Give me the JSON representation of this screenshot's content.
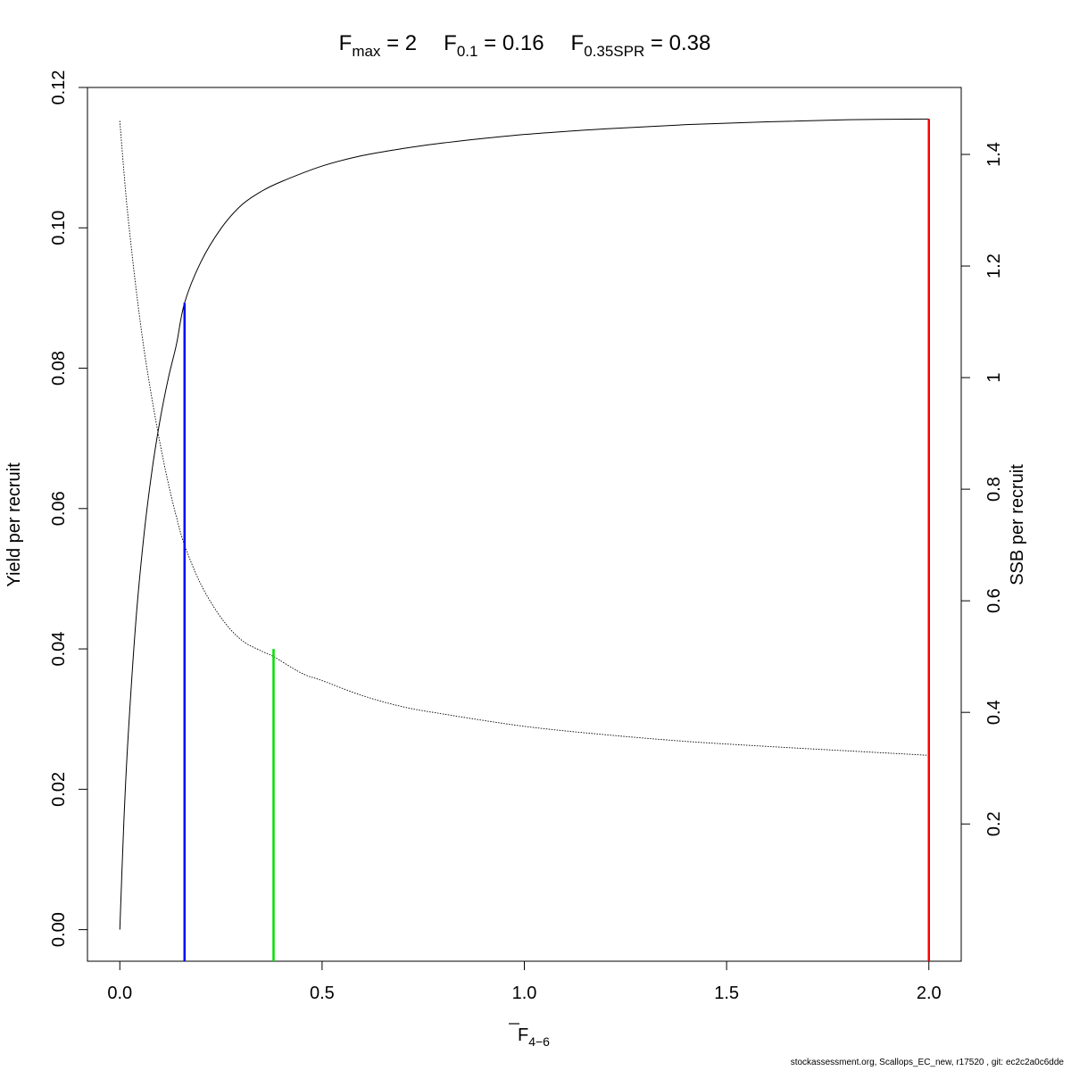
{
  "title": {
    "fmax": {
      "sym": "F",
      "sub": "max",
      "eq": " = ",
      "val": "2"
    },
    "f01": {
      "sym": "F",
      "sub": "0.1",
      "eq": " = ",
      "val": "0.16"
    },
    "fspr": {
      "sym": "F",
      "sub": "0.35SPR",
      "eq": " = ",
      "val": "0.38"
    }
  },
  "footer": "stockassessment.org, Scallops_EC_new, r17520 , git: ec2c2a0c6dde",
  "chart_data": {
    "type": "line",
    "xlabel": {
      "sym": "F",
      "sub": "4−6"
    },
    "ylabel_left": "Yield per recruit",
    "ylabel_right": "SSB per recruit",
    "xlim": [
      -0.08,
      2.08
    ],
    "ylim_left": [
      -0.0045,
      0.12
    ],
    "ylim_right": [
      -0.046,
      1.52
    ],
    "x_ticks": [
      0.0,
      0.5,
      1.0,
      1.5,
      2.0
    ],
    "x_tick_labels": [
      "0.0",
      "0.5",
      "1.0",
      "1.5",
      "2.0"
    ],
    "y_ticks_left": [
      0.0,
      0.02,
      0.04,
      0.06,
      0.08,
      0.1,
      0.12
    ],
    "y_tick_labels_left": [
      "0.00",
      "0.02",
      "0.04",
      "0.06",
      "0.08",
      "0.10",
      "0.12"
    ],
    "y_ticks_right": [
      0.2,
      0.4,
      0.6,
      0.8,
      1.0,
      1.2,
      1.4
    ],
    "y_tick_labels_right": [
      "0.2",
      "0.4",
      "0.6",
      "0.8",
      "1",
      "1.2",
      "1.4"
    ],
    "series": [
      {
        "axis": "left",
        "style": "solid",
        "color": "#000000",
        "x": [
          0,
          0.01,
          0.02,
          0.04,
          0.06,
          0.08,
          0.1,
          0.12,
          0.14,
          0.16,
          0.2,
          0.25,
          0.3,
          0.35,
          0.4,
          0.5,
          0.6,
          0.7,
          0.8,
          1.0,
          1.2,
          1.4,
          1.6,
          1.8,
          2.0
        ],
        "values": [
          0,
          0.0154,
          0.027,
          0.0442,
          0.0564,
          0.0656,
          0.0728,
          0.0786,
          0.0834,
          0.0893,
          0.0951,
          0.0999,
          0.1032,
          0.1052,
          0.1066,
          0.1088,
          0.1103,
          0.1113,
          0.1121,
          0.1133,
          0.1141,
          0.1147,
          0.1151,
          0.1154,
          0.1155
        ]
      },
      {
        "axis": "right",
        "style": "dotted",
        "color": "#000000",
        "x": [
          0,
          0.01,
          0.02,
          0.04,
          0.06,
          0.08,
          0.1,
          0.12,
          0.14,
          0.16,
          0.2,
          0.25,
          0.3,
          0.35,
          0.38,
          0.45,
          0.5,
          0.6,
          0.7,
          0.8,
          1.0,
          1.2,
          1.4,
          1.6,
          1.8,
          2.0
        ],
        "values": [
          1.46,
          1.37,
          1.29,
          1.16,
          1.05,
          0.96,
          0.88,
          0.81,
          0.75,
          0.7,
          0.63,
          0.57,
          0.53,
          0.51,
          0.5,
          0.47,
          0.457,
          0.43,
          0.41,
          0.397,
          0.375,
          0.36,
          0.348,
          0.339,
          0.331,
          0.323
        ]
      }
    ],
    "reference_lines": [
      {
        "name": "F0.1",
        "x": 0.16,
        "y_top": 0.0893,
        "color": "#0000ff"
      },
      {
        "name": "F0.35SPR",
        "x": 0.38,
        "y_top": 0.04,
        "color": "#00e000"
      },
      {
        "name": "Fmax",
        "x": 2.0,
        "y_top": 0.1155,
        "color": "#ff0000"
      }
    ]
  }
}
